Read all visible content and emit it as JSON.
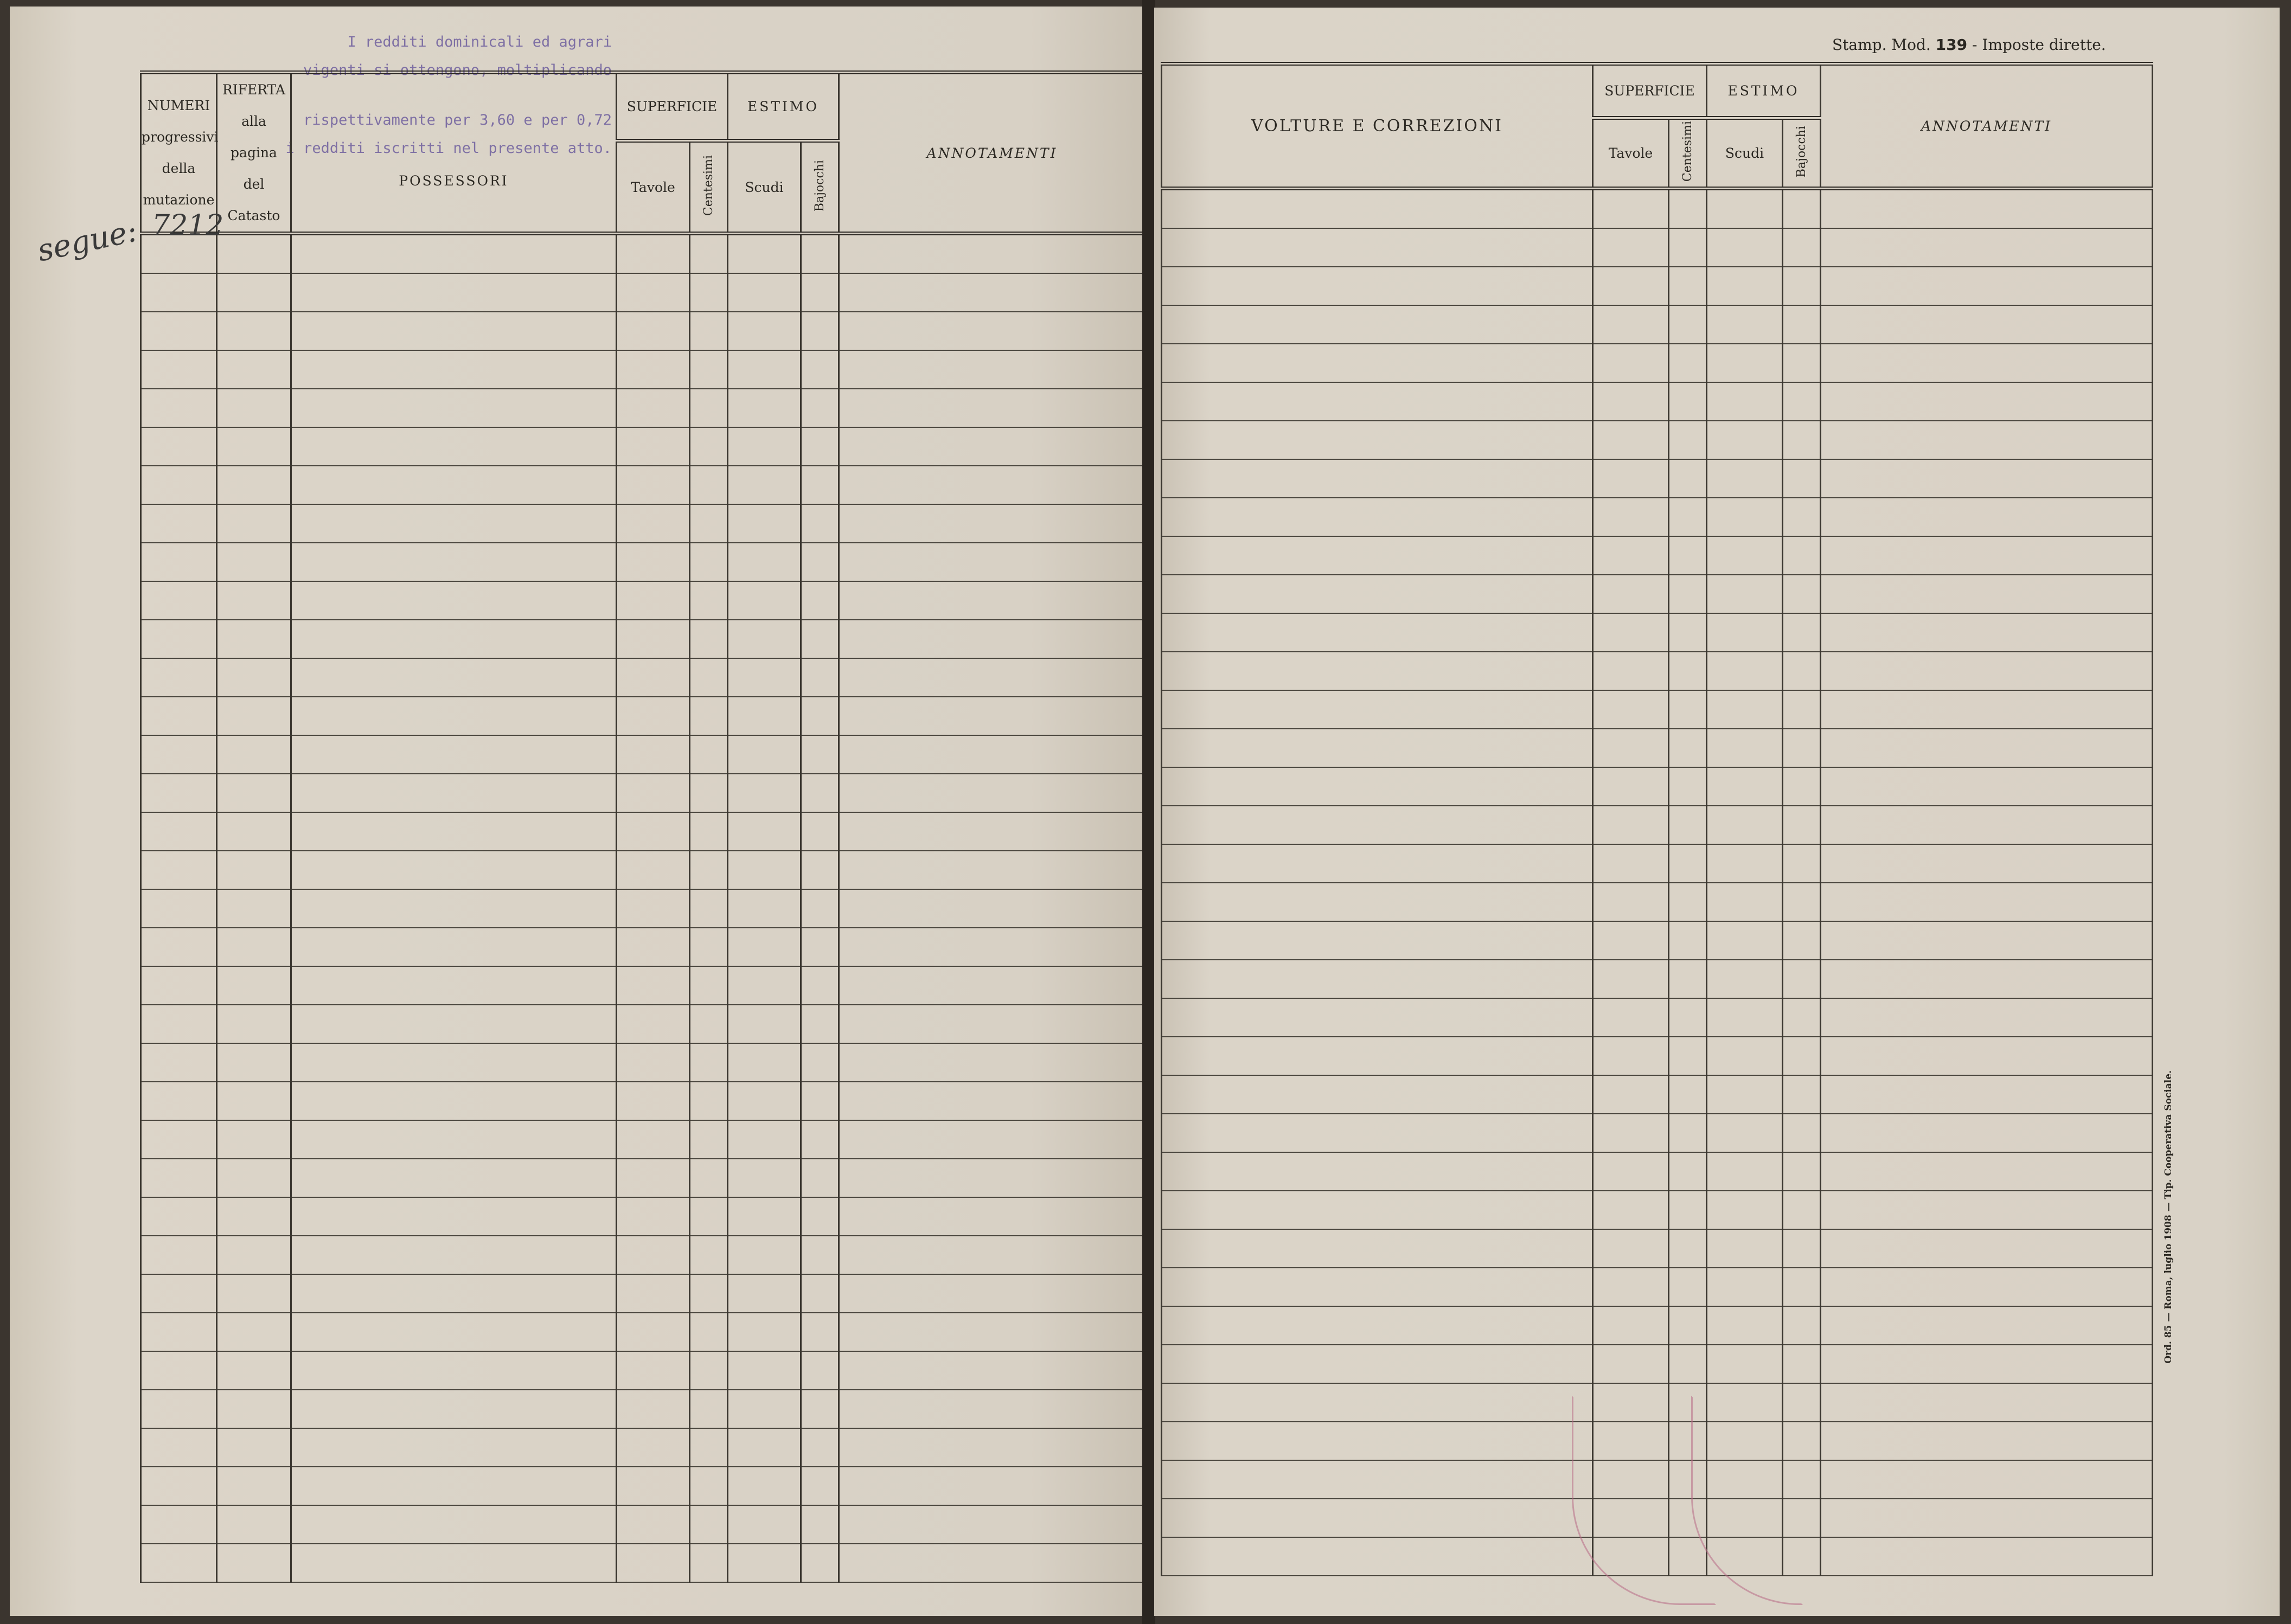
{
  "left_page": {
    "stamp_lines": [
      "I redditi dominicali ed agrari",
      "vigenti si ottengono, moltiplicando",
      "rispettivamente per 3,60 e per 0,72",
      "i redditi iscritti nel presente atto."
    ],
    "margin_note": "segue:",
    "headers": {
      "numeri": [
        "NUMERI",
        "progressivi",
        "della",
        "mutazione"
      ],
      "riferta": [
        "RIFERTA",
        "alla pagina",
        "del",
        "Catasto"
      ],
      "possessori": "POSSESSORI",
      "superficie": "SUPERFICIE",
      "tavole": "Tavole",
      "centesimi": "Centesimi",
      "estimo": "ESTIMO",
      "scudi": "Scudi",
      "bajocchi": "Bajocchi",
      "annotamenti": "ANNOTAMENTI"
    },
    "first_entry_number": "7212"
  },
  "right_page": {
    "form_title": {
      "prefix": "Stamp. Mod.",
      "number": "139",
      "suffix": "- Imposte dirette."
    },
    "headers": {
      "volture": "VOLTURE E CORREZIONI",
      "superficie": "SUPERFICIE",
      "tavole": "Tavole",
      "centesimi": "Centesimi",
      "estimo": "ESTIMO",
      "scudi": "Scudi",
      "bajocchi": "Bajocchi",
      "annotamenti": "ANNOTAMENTI"
    },
    "printer_note": "Ord. 85 — Roma, luglio 1908 — Tip. Cooperativa Sociale."
  },
  "colors": {
    "paper": "#d9d2c6",
    "ink": "#2b2822",
    "stamp_purple": "#6f5f9e",
    "pencil_pink": "#b86a86"
  }
}
